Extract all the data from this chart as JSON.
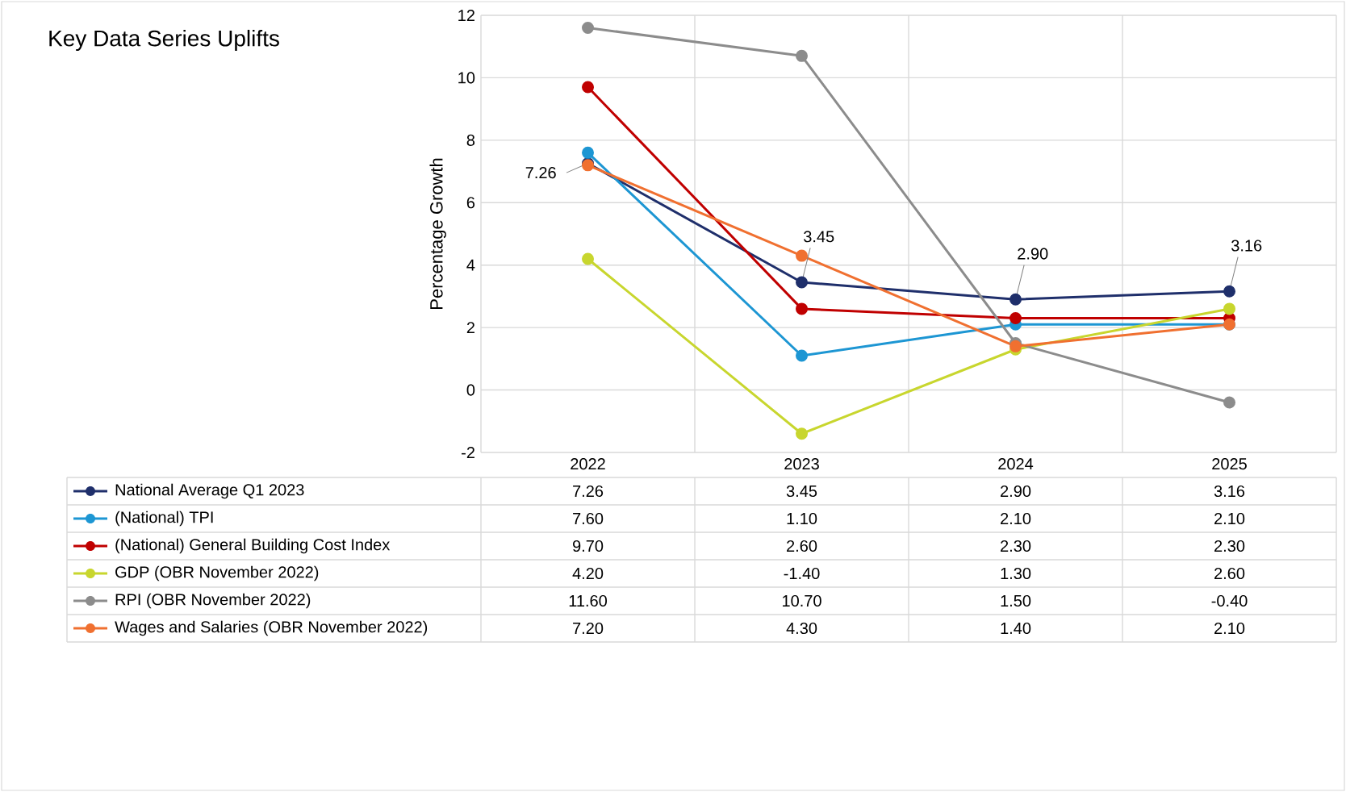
{
  "chart_data": {
    "type": "line",
    "title": "Key Data Series Uplifts",
    "ylabel": "Percentage Growth",
    "categories": [
      "2022",
      "2023",
      "2024",
      "2025"
    ],
    "series": [
      {
        "name": "National Average Q1 2023",
        "color": "#1f2f6b",
        "values": [
          7.26,
          3.45,
          2.9,
          3.16
        ],
        "value_labels": [
          "7.26",
          "3.45",
          "2.90",
          "3.16"
        ]
      },
      {
        "name": "(National) TPI",
        "color": "#1d96d3",
        "values": [
          7.6,
          1.1,
          2.1,
          2.1
        ],
        "value_labels": [
          "7.60",
          "1.10",
          "2.10",
          "2.10"
        ]
      },
      {
        "name": "(National) General Building Cost Index",
        "color": "#c00000",
        "values": [
          9.7,
          2.6,
          2.3,
          2.3
        ],
        "value_labels": [
          "9.70",
          "2.60",
          "2.30",
          "2.30"
        ]
      },
      {
        "name": "GDP (OBR November 2022)",
        "color": "#c8d62e",
        "values": [
          4.2,
          -1.4,
          1.3,
          2.6
        ],
        "value_labels": [
          "4.20",
          "-1.40",
          "1.30",
          "2.60"
        ]
      },
      {
        "name": "RPI (OBR November 2022)",
        "color": "#8c8c8c",
        "values": [
          11.6,
          10.7,
          1.5,
          -0.4
        ],
        "value_labels": [
          "11.60",
          "10.70",
          "1.50",
          "-0.40"
        ]
      },
      {
        "name": "Wages and Salaries (OBR November 2022)",
        "color": "#f07030",
        "values": [
          7.2,
          4.3,
          1.4,
          2.1
        ],
        "value_labels": [
          "7.20",
          "4.30",
          "1.40",
          "2.10"
        ]
      }
    ],
    "annotations": [
      {
        "text": "7.26",
        "x": "2022",
        "y": 7.26
      },
      {
        "text": "3.45",
        "x": "2023",
        "y": 3.45
      },
      {
        "text": "2.90",
        "x": "2024",
        "y": 2.9
      },
      {
        "text": "3.16",
        "x": "2025",
        "y": 3.16
      }
    ],
    "ylim": [
      -2,
      12
    ],
    "yticks": [
      -2,
      0,
      2,
      4,
      6,
      8,
      10,
      12
    ],
    "grid": true,
    "legend": "bottom",
    "marker": "circle",
    "line_style": "solid"
  }
}
